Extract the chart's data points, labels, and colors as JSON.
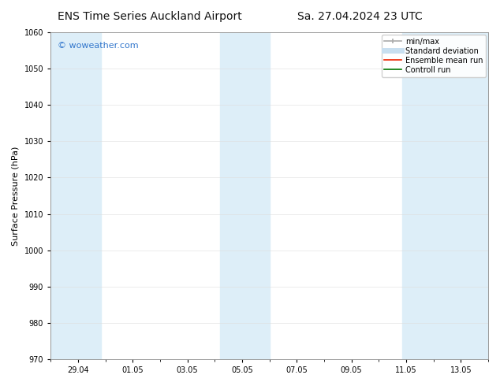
{
  "title_left": "ENS Time Series Auckland Airport",
  "title_right": "Sa. 27.04.2024 23 UTC",
  "ylabel": "Surface Pressure (hPa)",
  "ylim": [
    970,
    1060
  ],
  "yticks": [
    970,
    980,
    990,
    1000,
    1010,
    1020,
    1030,
    1040,
    1050,
    1060
  ],
  "xlim": [
    0,
    16
  ],
  "x_tick_positions": [
    1,
    3,
    5,
    7,
    9,
    11,
    13,
    15
  ],
  "x_tick_labels": [
    "29.04",
    "01.05",
    "03.05",
    "05.05",
    "07.05",
    "09.05",
    "11.05",
    "13.05"
  ],
  "shade_bands": [
    {
      "x_start": 0.0,
      "x_end": 1.85
    },
    {
      "x_start": 6.2,
      "x_end": 8.0
    },
    {
      "x_start": 12.85,
      "x_end": 16.0
    }
  ],
  "shade_color": "#ddeef8",
  "background_color": "#ffffff",
  "watermark_text": "© woweather.com",
  "watermark_color": "#3377cc",
  "legend_entries": [
    {
      "label": "min/max",
      "color": "#aaaaaa",
      "lw": 1.2,
      "ls": "-",
      "marker": "|"
    },
    {
      "label": "Standard deviation",
      "color": "#c8dff0",
      "lw": 5,
      "ls": "-",
      "marker": ""
    },
    {
      "label": "Ensemble mean run",
      "color": "#ee2200",
      "lw": 1.2,
      "ls": "-",
      "marker": ""
    },
    {
      "label": "Controll run",
      "color": "#007700",
      "lw": 1.2,
      "ls": "-",
      "marker": ""
    }
  ],
  "title_fontsize": 10,
  "ylabel_fontsize": 8,
  "tick_fontsize": 7,
  "watermark_fontsize": 8,
  "legend_fontsize": 7
}
